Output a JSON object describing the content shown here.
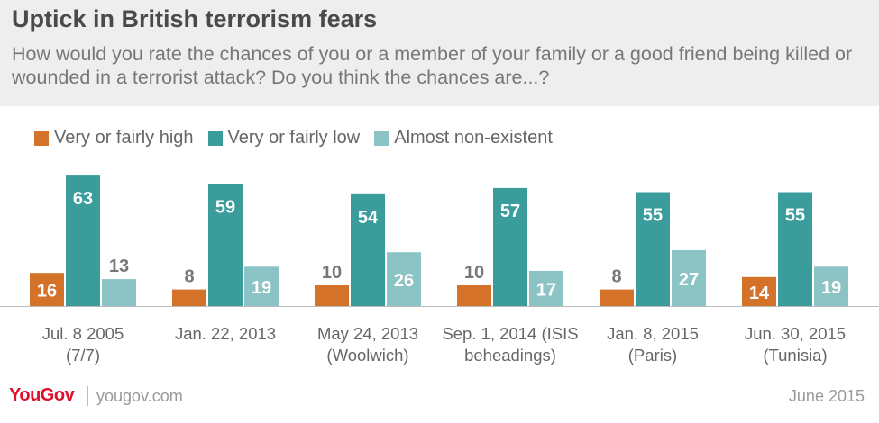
{
  "header": {
    "title": "Uptick in British terrorism fears",
    "subtitle": "How would you rate the chances of you or a member of your family or a good friend being killed or wounded in a terrorist attack? Do you think the chances are...?"
  },
  "footer": {
    "brand": "YouGov",
    "url": "yougov.com",
    "date": "June 2015"
  },
  "chart_data": {
    "type": "bar",
    "categories": [
      [
        "Jul. 8 2005",
        "(7/7)"
      ],
      [
        "Jan. 22, 2013"
      ],
      [
        "May 24, 2013",
        "(Woolwich)"
      ],
      [
        "Sep. 1, 2014 (ISIS",
        "beheadings)"
      ],
      [
        "Jan. 8, 2015",
        "(Paris)"
      ],
      [
        "Jun. 30, 2015",
        "(Tunisia)"
      ]
    ],
    "series": [
      {
        "name": "Very or fairly high",
        "color": "#d5722a",
        "values": [
          16,
          8,
          10,
          10,
          8,
          14
        ]
      },
      {
        "name": "Very or fairly low",
        "color": "#3a9d9b",
        "values": [
          63,
          59,
          54,
          57,
          55,
          55
        ]
      },
      {
        "name": "Almost non-existent",
        "color": "#8cc4c6",
        "values": [
          13,
          19,
          26,
          17,
          27,
          19
        ]
      }
    ],
    "ylim": [
      0,
      70
    ],
    "grid": false,
    "legend_position": "top-left"
  }
}
